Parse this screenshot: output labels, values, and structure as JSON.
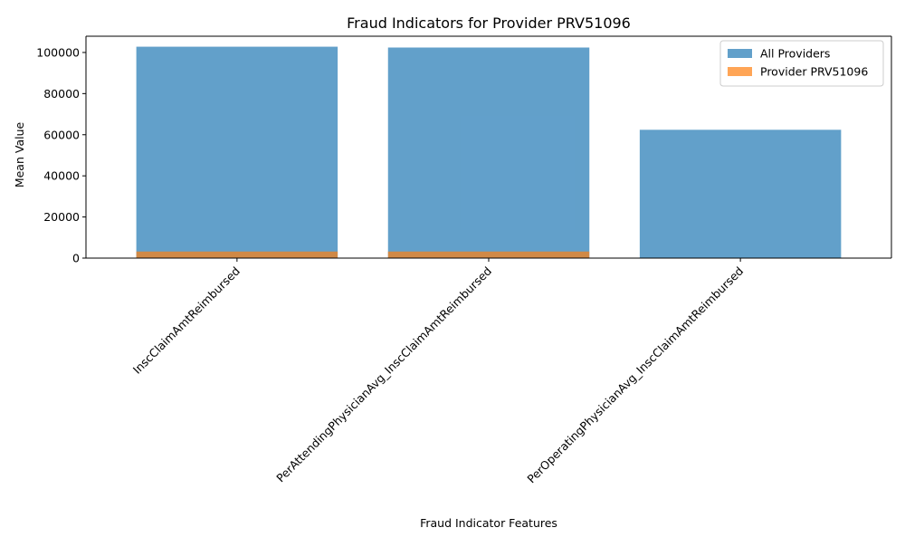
{
  "chart_data": {
    "type": "bar",
    "title": "Fraud Indicators for Provider PRV51096",
    "xlabel": "Fraud Indicator Features",
    "ylabel": "Mean Value",
    "categories": [
      "InscClaimAmtReimbursed",
      "PerAttendingPhysicianAvg_InscClaimAmtReimbursed",
      "PerOperatingPhysicianAvg_InscClaimAmtReimbursed"
    ],
    "series": [
      {
        "name": "All Providers",
        "color": "#1f77b4",
        "opacity": 0.7,
        "values": [
          102800,
          102400,
          62400
        ]
      },
      {
        "name": "Provider PRV51096",
        "color": "#ff7f0e",
        "opacity": 0.7,
        "values": [
          3200,
          3200,
          0
        ]
      }
    ],
    "ylim": [
      0,
      107900
    ],
    "yticks": [
      0,
      20000,
      40000,
      60000,
      80000,
      100000
    ],
    "grid": false,
    "legend": "top-right",
    "bars_overlaid": true
  }
}
